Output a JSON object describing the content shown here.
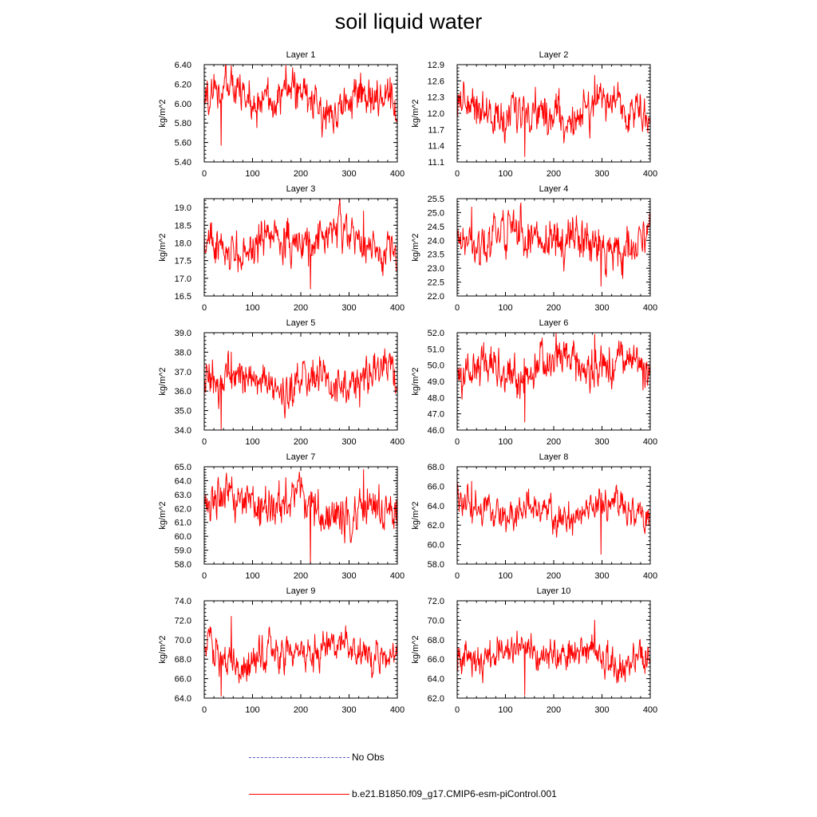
{
  "title": "soil liquid water",
  "colors": {
    "series": "#ff0000",
    "obs": "#5a5ac8",
    "axis": "#000000"
  },
  "legend": [
    {
      "label": "No Obs",
      "style": "dashed",
      "color": "#5a5ac8"
    },
    {
      "label": "b.e21.B1850.f09_g17.CMIP6-esm-piControl.001",
      "style": "solid",
      "color": "#ff0000"
    }
  ],
  "chart_data": [
    {
      "type": "line",
      "title": "Layer 1",
      "ylabel": "kg/m^2",
      "xlim": [
        0,
        400
      ],
      "ylim": [
        5.4,
        6.4
      ],
      "xticks": [
        "0",
        "100",
        "200",
        "300",
        "400"
      ],
      "yticks": [
        "5.40",
        "5.60",
        "5.80",
        "6.00",
        "6.20",
        "6.40"
      ],
      "mean": 6.05,
      "amplitude": 0.13,
      "min": 5.57,
      "max": 6.39,
      "n_points": 400,
      "series": [
        {
          "name": "b.e21.B1850.f09_g17.CMIP6-esm-piControl.001"
        }
      ]
    },
    {
      "type": "line",
      "title": "Layer 2",
      "ylabel": "kg/m^2",
      "xlim": [
        0,
        400
      ],
      "ylim": [
        11.1,
        12.9
      ],
      "xticks": [
        "0",
        "100",
        "200",
        "300",
        "400"
      ],
      "yticks": [
        "11.1",
        "11.4",
        "11.7",
        "12.0",
        "12.3",
        "12.6",
        "12.9"
      ],
      "mean": 12.05,
      "amplitude": 0.22,
      "min": 11.2,
      "max": 12.7,
      "n_points": 400,
      "series": [
        {
          "name": "b.e21.B1850.f09_g17.CMIP6-esm-piControl.001"
        }
      ]
    },
    {
      "type": "line",
      "title": "Layer 3",
      "ylabel": "kg/m^2",
      "xlim": [
        0,
        400
      ],
      "ylim": [
        16.5,
        19.25
      ],
      "xticks": [
        "0",
        "100",
        "200",
        "300",
        "400"
      ],
      "yticks": [
        "16.5",
        "17.0",
        "17.5",
        "18.0",
        "18.5",
        "19.0"
      ],
      "mean": 18.0,
      "amplitude": 0.33,
      "min": 16.7,
      "max": 18.9,
      "n_points": 400,
      "series": [
        {
          "name": "b.e21.B1850.f09_g17.CMIP6-esm-piControl.001"
        }
      ]
    },
    {
      "type": "line",
      "title": "Layer 4",
      "ylabel": "kg/m^2",
      "xlim": [
        0,
        400
      ],
      "ylim": [
        22.0,
        25.5
      ],
      "xticks": [
        "0",
        "100",
        "200",
        "300",
        "400"
      ],
      "yticks": [
        "22.0",
        "22.5",
        "23.0",
        "23.5",
        "24.0",
        "24.5",
        "25.0",
        "25.5"
      ],
      "mean": 24.0,
      "amplitude": 0.45,
      "min": 22.35,
      "max": 25.2,
      "n_points": 400,
      "series": [
        {
          "name": "b.e21.B1850.f09_g17.CMIP6-esm-piControl.001"
        }
      ]
    },
    {
      "type": "line",
      "title": "Layer 5",
      "ylabel": "kg/m^2",
      "xlim": [
        0,
        400
      ],
      "ylim": [
        34.0,
        39.0
      ],
      "xticks": [
        "0",
        "100",
        "200",
        "300",
        "400"
      ],
      "yticks": [
        "34.0",
        "35.0",
        "36.0",
        "37.0",
        "38.0",
        "39.0"
      ],
      "mean": 36.5,
      "amplitude": 0.6,
      "min": 34.0,
      "max": 38.0,
      "n_points": 400,
      "series": [
        {
          "name": "b.e21.B1850.f09_g17.CMIP6-esm-piControl.001"
        }
      ]
    },
    {
      "type": "line",
      "title": "Layer 6",
      "ylabel": "kg/m^2",
      "xlim": [
        0,
        400
      ],
      "ylim": [
        46.0,
        52.0
      ],
      "xticks": [
        "0",
        "100",
        "200",
        "300",
        "400"
      ],
      "yticks": [
        "46.0",
        "47.0",
        "48.0",
        "49.0",
        "50.0",
        "51.0",
        "52.0"
      ],
      "mean": 49.8,
      "amplitude": 0.8,
      "min": 46.5,
      "max": 51.9,
      "n_points": 400,
      "series": [
        {
          "name": "b.e21.B1850.f09_g17.CMIP6-esm-piControl.001"
        }
      ]
    },
    {
      "type": "line",
      "title": "Layer 7",
      "ylabel": "kg/m^2",
      "xlim": [
        0,
        400
      ],
      "ylim": [
        58.0,
        65.0
      ],
      "xticks": [
        "0",
        "100",
        "200",
        "300",
        "400"
      ],
      "yticks": [
        "58.0",
        "59.0",
        "60.0",
        "61.0",
        "62.0",
        "63.0",
        "64.0",
        "65.0"
      ],
      "mean": 62.0,
      "amplitude": 0.9,
      "min": 58.0,
      "max": 64.8,
      "n_points": 400,
      "series": [
        {
          "name": "b.e21.B1850.f09_g17.CMIP6-esm-piControl.001"
        }
      ]
    },
    {
      "type": "line",
      "title": "Layer 8",
      "ylabel": "kg/m^2",
      "xlim": [
        0,
        400
      ],
      "ylim": [
        58.0,
        68.0
      ],
      "xticks": [
        "0",
        "100",
        "200",
        "300",
        "400"
      ],
      "yticks": [
        "58.0",
        "60.0",
        "62.0",
        "64.0",
        "66.0",
        "68.0"
      ],
      "mean": 63.5,
      "amplitude": 1.0,
      "min": 59.0,
      "max": 66.5,
      "n_points": 400,
      "series": [
        {
          "name": "b.e21.B1850.f09_g17.CMIP6-esm-piControl.001"
        }
      ]
    },
    {
      "type": "line",
      "title": "Layer 9",
      "ylabel": "kg/m^2",
      "xlim": [
        0,
        400
      ],
      "ylim": [
        64.0,
        74.0
      ],
      "xticks": [
        "0",
        "100",
        "200",
        "300",
        "400"
      ],
      "yticks": [
        "64.0",
        "66.0",
        "68.0",
        "70.0",
        "72.0",
        "74.0"
      ],
      "mean": 68.6,
      "amplitude": 1.1,
      "min": 64.2,
      "max": 72.4,
      "n_points": 400,
      "series": [
        {
          "name": "b.e21.B1850.f09_g17.CMIP6-esm-piControl.001"
        }
      ]
    },
    {
      "type": "line",
      "title": "Layer 10",
      "ylabel": "kg/m^2",
      "xlim": [
        0,
        400
      ],
      "ylim": [
        62.0,
        72.0
      ],
      "xticks": [
        "0",
        "100",
        "200",
        "300",
        "400"
      ],
      "yticks": [
        "62.0",
        "64.0",
        "66.0",
        "68.0",
        "70.0",
        "72.0"
      ],
      "mean": 66.5,
      "amplitude": 1.05,
      "min": 62.3,
      "max": 70.0,
      "n_points": 400,
      "series": [
        {
          "name": "b.e21.B1850.f09_g17.CMIP6-esm-piControl.001"
        }
      ]
    }
  ]
}
